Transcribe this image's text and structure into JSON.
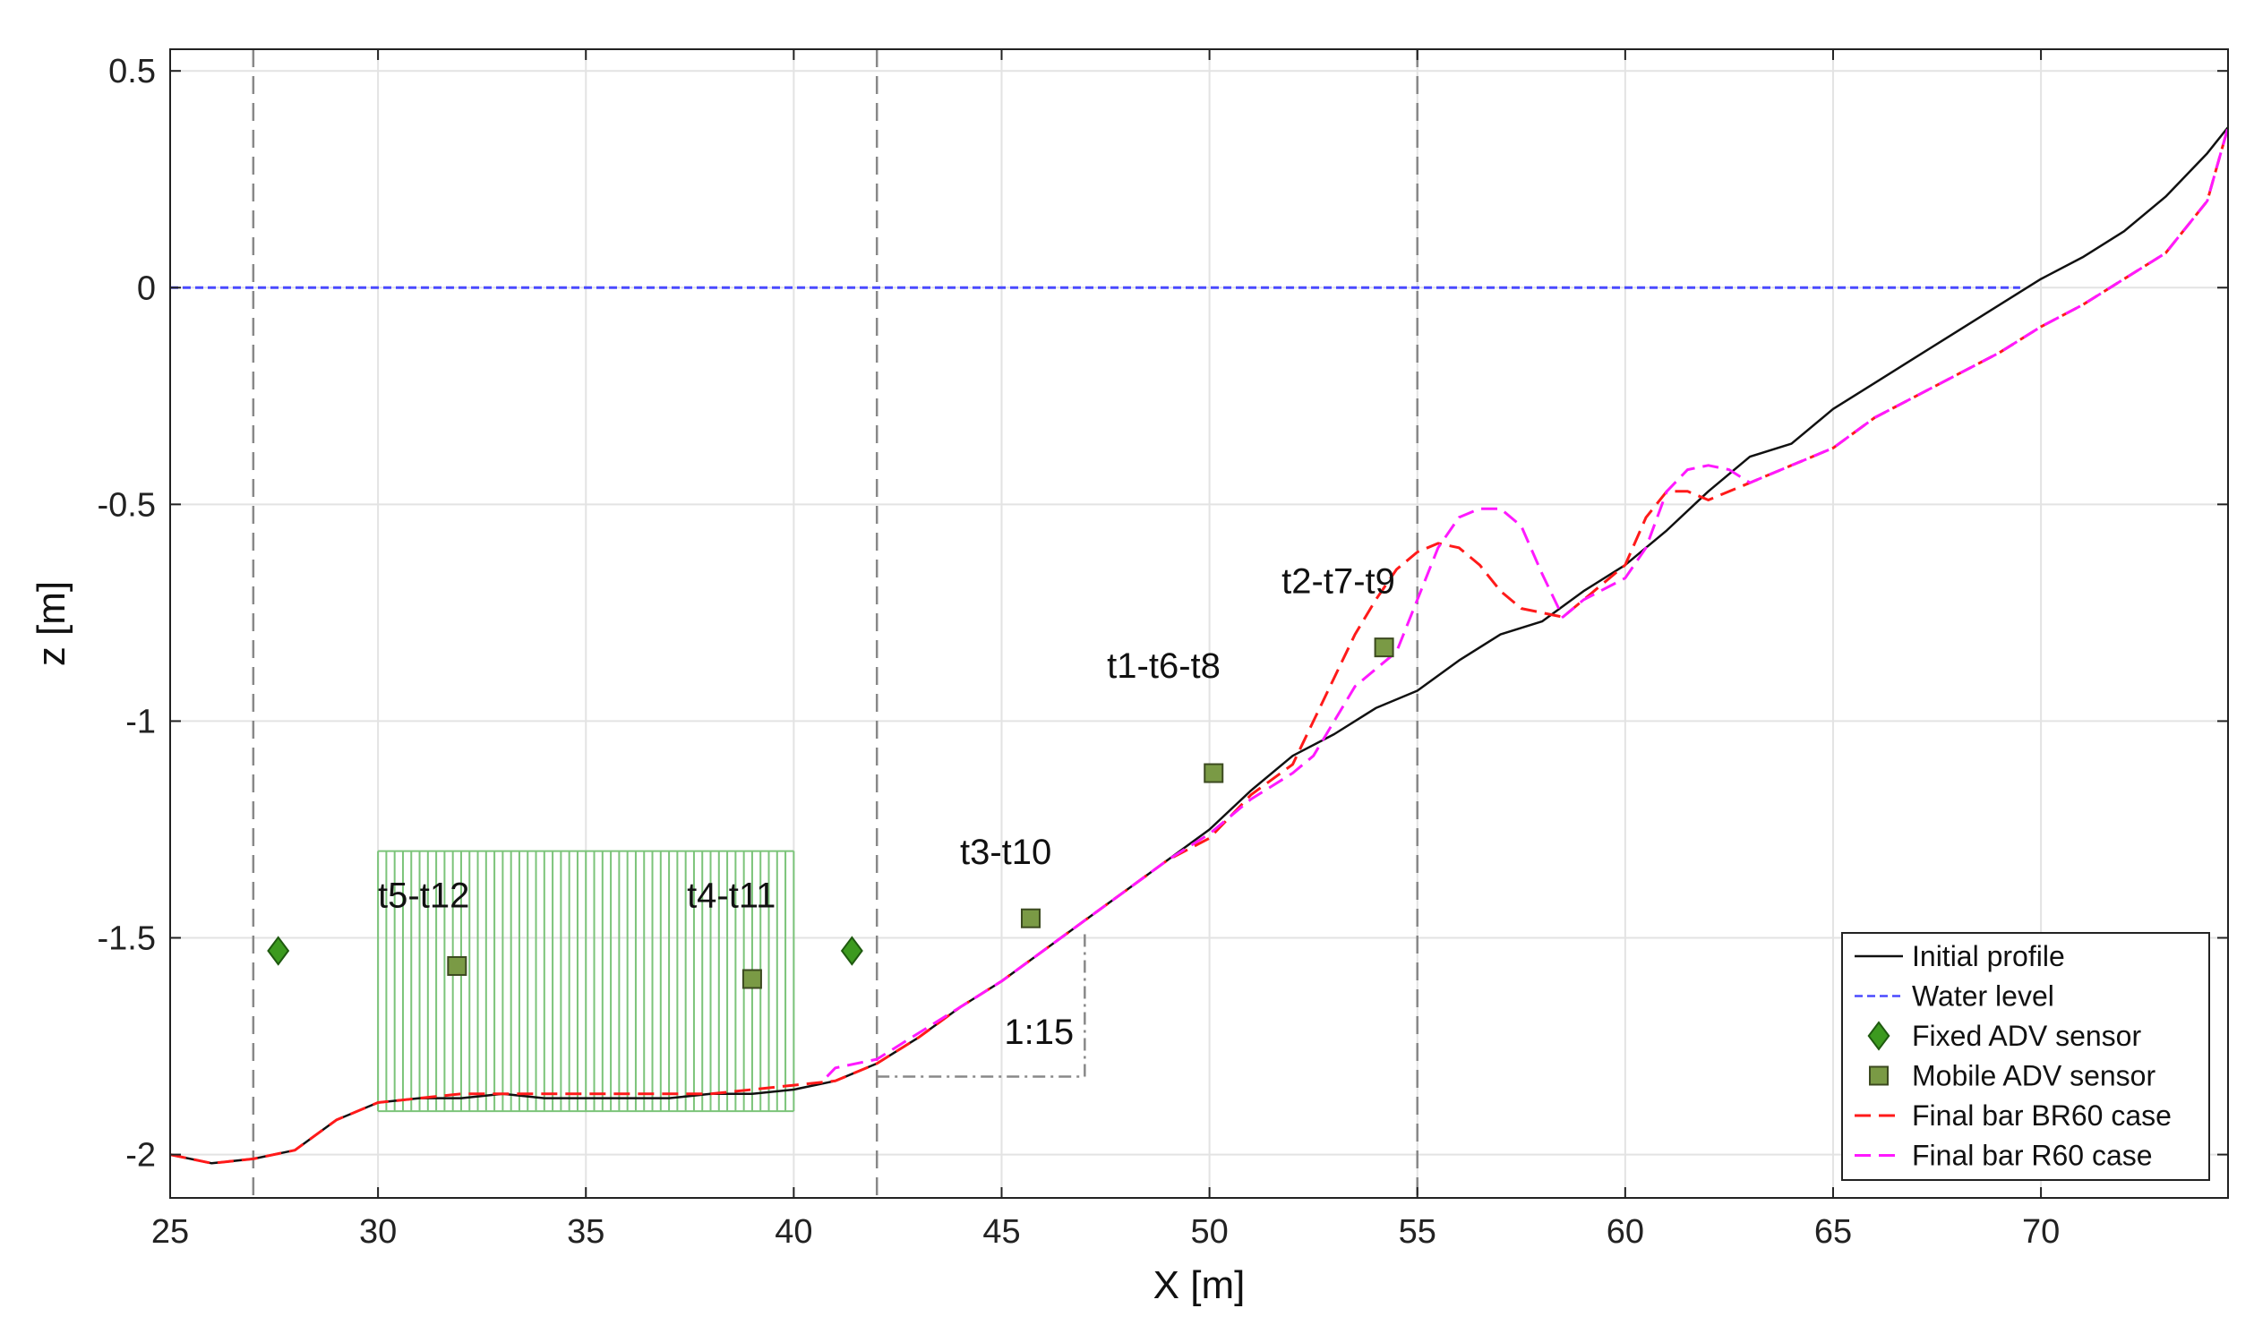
{
  "chart_data": {
    "type": "line",
    "xlabel": "X [m]",
    "ylabel": "z [m]",
    "xlim": [
      25,
      74.5
    ],
    "ylim": [
      -2.1,
      0.55
    ],
    "xticks": [
      25,
      30,
      35,
      40,
      45,
      50,
      55,
      60,
      65,
      70
    ],
    "xtick_labels": [
      "25",
      "30",
      "35",
      "40",
      "45",
      "50",
      "55",
      "60",
      "65",
      "70"
    ],
    "yticks": [
      -2,
      -1.5,
      -1,
      -0.5,
      0,
      0.5
    ],
    "ytick_labels": [
      "-2",
      "-1.5",
      "-1",
      "-0.5",
      "0",
      "0.5"
    ],
    "grid": true,
    "legend_position": "bottom-right",
    "colors": {
      "initial": "#111111",
      "water": "#4a4aff",
      "br60": "#ff1a1a",
      "r60": "#ff19ff",
      "fixed": "#3c9a1f",
      "mobile": "#7a9a45",
      "green_field": "#7cc47a",
      "guide": "#888888"
    },
    "vertical_lines_x": [
      27,
      42,
      55
    ],
    "series": [
      {
        "name": "Initial profile",
        "style": "solid",
        "color": "#111111",
        "x": [
          25,
          26,
          27,
          28,
          29,
          30,
          31,
          32,
          33,
          34,
          35,
          36,
          37,
          38,
          39,
          40,
          41,
          42,
          43,
          44,
          45,
          46,
          47,
          48,
          49,
          50,
          51,
          52,
          53,
          54,
          55,
          56,
          57,
          58,
          59,
          60,
          61,
          62,
          63,
          64,
          65,
          66,
          67,
          68,
          69,
          70,
          71,
          72,
          73,
          74,
          74.5
        ],
        "y": [
          -2.0,
          -2.02,
          -2.01,
          -1.99,
          -1.92,
          -1.88,
          -1.87,
          -1.87,
          -1.86,
          -1.87,
          -1.87,
          -1.87,
          -1.87,
          -1.86,
          -1.86,
          -1.85,
          -1.83,
          -1.79,
          -1.73,
          -1.66,
          -1.6,
          -1.53,
          -1.46,
          -1.39,
          -1.32,
          -1.25,
          -1.16,
          -1.08,
          -1.03,
          -0.97,
          -0.93,
          -0.86,
          -0.8,
          -0.77,
          -0.7,
          -0.64,
          -0.56,
          -0.47,
          -0.39,
          -0.36,
          -0.28,
          -0.22,
          -0.16,
          -0.1,
          -0.04,
          0.02,
          0.07,
          0.13,
          0.21,
          0.31,
          0.37
        ]
      },
      {
        "name": "Water level",
        "style": "dashed",
        "color": "#4a4aff",
        "x": [
          25,
          69.5
        ],
        "y": [
          0,
          0
        ]
      },
      {
        "name": "Final bar BR60 case",
        "style": "dashed",
        "color": "#ff1a1a",
        "x": [
          25,
          26,
          27,
          28,
          29,
          30,
          31,
          32,
          33,
          34,
          35,
          36,
          37,
          38,
          39,
          40,
          41,
          42,
          43,
          44,
          45,
          46,
          47,
          48,
          49,
          50,
          51,
          52,
          52.5,
          53,
          53.5,
          54,
          54.5,
          55,
          55.5,
          56,
          56.5,
          57,
          57.5,
          58,
          58.5,
          59,
          60,
          60.5,
          61,
          61.5,
          62,
          63,
          64,
          65,
          66,
          67,
          68,
          69,
          70,
          71,
          72,
          73,
          74,
          74.5
        ],
        "y": [
          -2.0,
          -2.02,
          -2.01,
          -1.99,
          -1.92,
          -1.88,
          -1.87,
          -1.86,
          -1.86,
          -1.86,
          -1.86,
          -1.86,
          -1.86,
          -1.86,
          -1.85,
          -1.84,
          -1.83,
          -1.79,
          -1.73,
          -1.66,
          -1.6,
          -1.53,
          -1.46,
          -1.39,
          -1.32,
          -1.27,
          -1.17,
          -1.1,
          -1.0,
          -0.9,
          -0.8,
          -0.72,
          -0.65,
          -0.61,
          -0.59,
          -0.6,
          -0.64,
          -0.7,
          -0.74,
          -0.75,
          -0.76,
          -0.72,
          -0.64,
          -0.53,
          -0.47,
          -0.47,
          -0.49,
          -0.45,
          -0.41,
          -0.37,
          -0.3,
          -0.25,
          -0.2,
          -0.15,
          -0.09,
          -0.04,
          0.02,
          0.08,
          0.2,
          0.37
        ]
      },
      {
        "name": "Final bar R60 case",
        "style": "dashed",
        "color": "#ff19ff",
        "x": [
          40.8,
          41,
          42,
          43,
          44,
          45,
          46,
          47,
          48,
          49,
          50,
          51,
          52,
          52.5,
          53,
          53.5,
          54,
          54.5,
          55,
          55.5,
          56,
          56.5,
          57,
          57.5,
          58,
          58.5,
          59,
          60,
          60.5,
          61,
          61.5,
          62,
          62.5,
          63,
          64,
          65,
          66,
          67,
          68,
          69,
          70,
          71,
          72,
          73,
          74,
          74.5
        ],
        "y": [
          -1.82,
          -1.8,
          -1.78,
          -1.72,
          -1.66,
          -1.6,
          -1.53,
          -1.46,
          -1.39,
          -1.32,
          -1.26,
          -1.18,
          -1.12,
          -1.08,
          -1.0,
          -0.92,
          -0.88,
          -0.84,
          -0.72,
          -0.6,
          -0.53,
          -0.51,
          -0.51,
          -0.55,
          -0.66,
          -0.76,
          -0.72,
          -0.67,
          -0.6,
          -0.47,
          -0.42,
          -0.41,
          -0.42,
          -0.45,
          -0.41,
          -0.37,
          -0.3,
          -0.25,
          -0.2,
          -0.15,
          -0.09,
          -0.04,
          0.02,
          0.08,
          0.2,
          0.37
        ]
      }
    ],
    "fixed_sensors": {
      "name": "Fixed ADV sensor",
      "points": [
        {
          "x": 27.6,
          "y": -1.53
        },
        {
          "x": 41.4,
          "y": -1.53
        }
      ]
    },
    "mobile_sensors": {
      "name": "Mobile ADV sensor",
      "points": [
        {
          "x": 31.9,
          "y": -1.565,
          "label": "t5-t12"
        },
        {
          "x": 39.0,
          "y": -1.595,
          "label": "t4-t11"
        },
        {
          "x": 45.7,
          "y": -1.455,
          "label": "t3-t10"
        },
        {
          "x": 50.1,
          "y": -1.12,
          "label": "t1-t6-t8"
        },
        {
          "x": 54.2,
          "y": -0.83,
          "label": "t2-t7-t9"
        }
      ]
    },
    "vegetation_field": {
      "x_range": [
        30,
        40
      ],
      "y_range": [
        -1.9,
        -1.3
      ]
    },
    "slope_annotation": {
      "text": "1:15",
      "triangle": [
        {
          "x": 42,
          "y": -1.82
        },
        {
          "x": 47,
          "y": -1.82
        },
        {
          "x": 47,
          "y": -1.49
        }
      ]
    },
    "legend": [
      "Initial profile",
      "Water level",
      "Fixed ADV sensor",
      "Mobile ADV sensor",
      "Final bar BR60 case",
      "Final bar R60 case"
    ]
  }
}
